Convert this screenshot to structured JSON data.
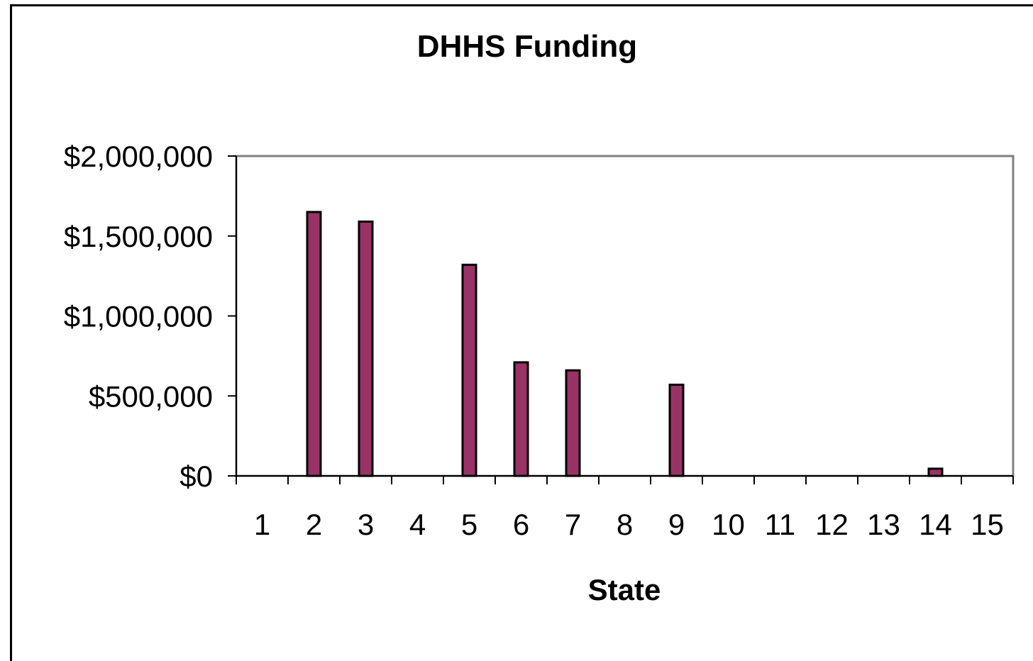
{
  "chart_data": {
    "type": "bar",
    "title": "DHHS Funding",
    "xlabel": "State",
    "ylabel": "",
    "categories": [
      "1",
      "2",
      "3",
      "4",
      "5",
      "6",
      "7",
      "8",
      "9",
      "10",
      "11",
      "12",
      "13",
      "14",
      "15"
    ],
    "values": [
      0,
      1650000,
      1590000,
      0,
      1320000,
      710000,
      660000,
      0,
      570000,
      0,
      0,
      0,
      0,
      45000,
      0
    ],
    "ylim": [
      0,
      2000000
    ],
    "yticks": [
      "$0",
      "$500,000",
      "$1,000,000",
      "$1,500,000",
      "$2,000,000"
    ],
    "ytick_values": [
      0,
      500000,
      1000000,
      1500000,
      2000000
    ],
    "grid": false,
    "legend": "none",
    "colors": {
      "bar_fill": "#993366",
      "bar_stroke": "#000000",
      "plot_border": "#808080"
    }
  }
}
